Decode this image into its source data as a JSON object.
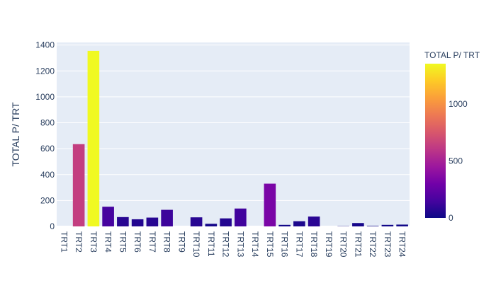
{
  "chart_data": {
    "type": "bar",
    "categories": [
      "TRT1",
      "TRT2",
      "TRT3",
      "TRT4",
      "TRT5",
      "TRT6",
      "TRT7",
      "TRT8",
      "TRT9",
      "TRT10",
      "TRT11",
      "TRT12",
      "TRT13",
      "TRT14",
      "TRT15",
      "TRT16",
      "TRT17",
      "TRT18",
      "TRT19",
      "TRT20",
      "TRT21",
      "TRT22",
      "TRT23",
      "TRT24"
    ],
    "values": [
      0,
      635,
      1355,
      152,
      72,
      55,
      68,
      128,
      0,
      70,
      20,
      62,
      138,
      0,
      330,
      12,
      40,
      76,
      0,
      2,
      26,
      4,
      12,
      14
    ],
    "ylabel": "TOTAL P/ TRT",
    "yticks": [
      0,
      200,
      400,
      600,
      800,
      1000,
      1200,
      1400
    ],
    "ylim": [
      0,
      1420
    ],
    "grid": true,
    "colorbar": {
      "title": "TOTAL P/ TRT",
      "ticks": [
        0,
        500,
        1000
      ],
      "range": [
        0,
        1355
      ],
      "colorscale": [
        "#0d0887",
        "#46039f",
        "#7201a8",
        "#9c179e",
        "#bd3786",
        "#d8576b",
        "#ed7953",
        "#fb9f3a",
        "#fdca26",
        "#f0f921"
      ]
    },
    "colors": {
      "plot_bg": "#e5ecf6",
      "grid": "#ffffff",
      "text": "#2a3f5f"
    }
  }
}
